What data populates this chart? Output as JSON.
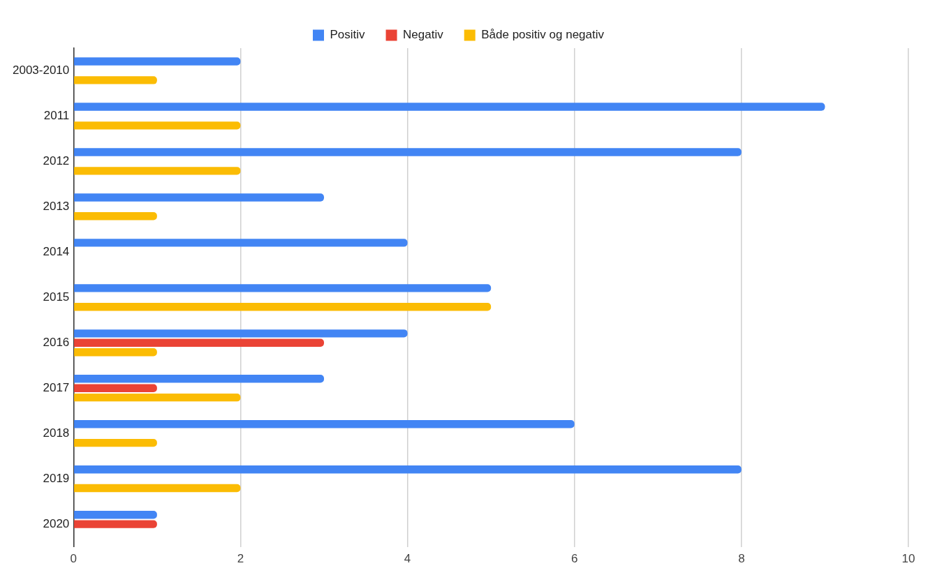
{
  "chart_data": {
    "type": "bar",
    "orientation": "horizontal",
    "categories": [
      "2003-2010",
      "2011",
      "2012",
      "2013",
      "2014",
      "2015",
      "2016",
      "2017",
      "2018",
      "2019",
      "2020"
    ],
    "series": [
      {
        "name": "Positiv",
        "color": "#4285f4",
        "values": [
          2,
          9,
          8,
          3,
          4,
          5,
          4,
          3,
          6,
          8,
          1
        ]
      },
      {
        "name": "Negativ",
        "color": "#ea4335",
        "values": [
          0,
          0,
          0,
          0,
          0,
          0,
          3,
          1,
          0,
          0,
          1
        ]
      },
      {
        "name": "Både positiv og negativ",
        "color": "#fbbc04",
        "values": [
          1,
          2,
          2,
          1,
          0,
          5,
          1,
          2,
          1,
          2,
          0
        ]
      }
    ],
    "xlim": [
      0,
      10
    ],
    "xticks": [
      0,
      2,
      4,
      6,
      8,
      10
    ],
    "grid": "x",
    "legend": "top"
  }
}
